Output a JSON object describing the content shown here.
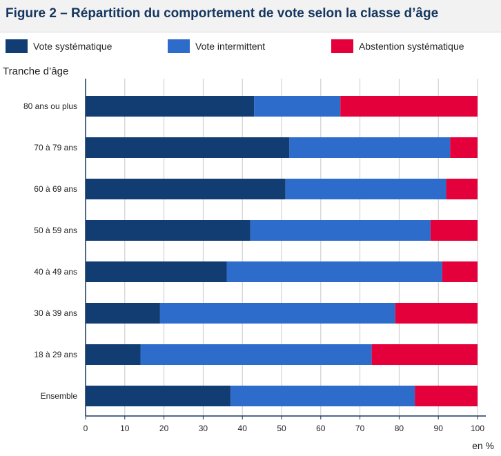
{
  "header": {
    "title": "Figure 2 – Répartition du comportement de vote selon la classe d’âge"
  },
  "chart_data": {
    "type": "bar",
    "orientation": "horizontal",
    "stacked": true,
    "title": "Figure 2 – Répartition du comportement de vote selon la classe d’âge",
    "ylabel": "Tranche d’âge",
    "xlabel": "en %",
    "xlim": [
      0,
      100
    ],
    "xticks": [
      0,
      10,
      20,
      30,
      40,
      50,
      60,
      70,
      80,
      90,
      100
    ],
    "grid": true,
    "legend_position": "top",
    "categories": [
      "80 ans ou plus",
      "70 à 79 ans",
      "60 à 69 ans",
      "50 à 59 ans",
      "40 à 49 ans",
      "30 à 39 ans",
      "18 à 29 ans",
      "Ensemble"
    ],
    "series": [
      {
        "name": "Vote systématique",
        "color": "#123d73",
        "values": [
          43,
          52,
          51,
          42,
          36,
          19,
          14,
          37
        ]
      },
      {
        "name": "Vote intermittent",
        "color": "#2e6ccb",
        "values": [
          22,
          41,
          41,
          46,
          55,
          60,
          59,
          47
        ]
      },
      {
        "name": "Abstention systématique",
        "color": "#e4003b",
        "values": [
          35,
          7,
          8,
          12,
          9,
          21,
          27,
          16
        ]
      }
    ]
  }
}
